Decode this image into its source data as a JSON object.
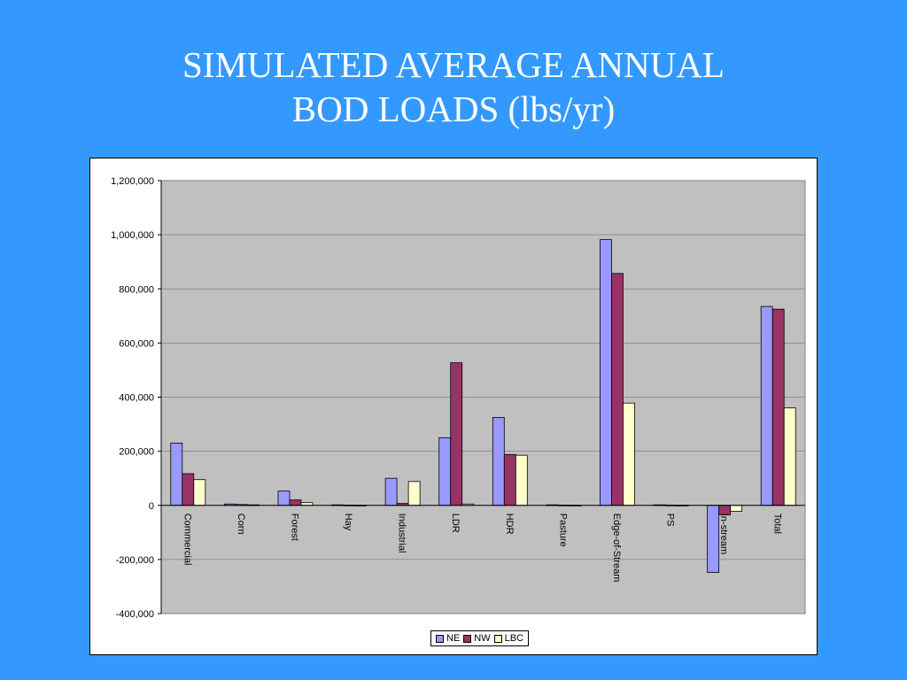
{
  "slide": {
    "title_line1": "SIMULATED AVERAGE ANNUAL",
    "title_line2": "BOD LOADS (lbs/yr)"
  },
  "colors": {
    "background": "#3399ff",
    "plot_area": "#c0c0c0",
    "NE": "#9999ff",
    "NW": "#993366",
    "LBC": "#ffffcc"
  },
  "chart_data": {
    "type": "bar",
    "title": "",
    "xlabel": "",
    "ylabel": "",
    "categories": [
      "Commercial",
      "Corn",
      "Forest",
      "Hay",
      "Industrial",
      "LDR",
      "HDR",
      "Pasture",
      "Edge-of-Stream",
      "PS",
      "In-stream",
      "Total"
    ],
    "series": [
      {
        "name": "NE",
        "values": [
          230000,
          5000,
          53000,
          2000,
          100000,
          250000,
          325000,
          2000,
          982000,
          2000,
          -248000,
          735000
        ]
      },
      {
        "name": "NW",
        "values": [
          117000,
          3000,
          20000,
          1000,
          7000,
          527000,
          188000,
          1000,
          857000,
          1000,
          -35000,
          725000
        ]
      },
      {
        "name": "LBC",
        "values": [
          95000,
          2000,
          10000,
          500,
          88000,
          5000,
          185000,
          500,
          378000,
          500,
          -22000,
          360000
        ]
      }
    ],
    "ylim": [
      -400000,
      1200000
    ],
    "yticks": [
      -400000,
      -200000,
      0,
      200000,
      400000,
      600000,
      800000,
      1000000,
      1200000
    ],
    "ytick_labels": [
      "-400,000",
      "-200,000",
      "0",
      "200,000",
      "400,000",
      "600,000",
      "800,000",
      "1,000,000",
      "1,200,000"
    ],
    "grid": true,
    "legend_position": "bottom-center"
  }
}
